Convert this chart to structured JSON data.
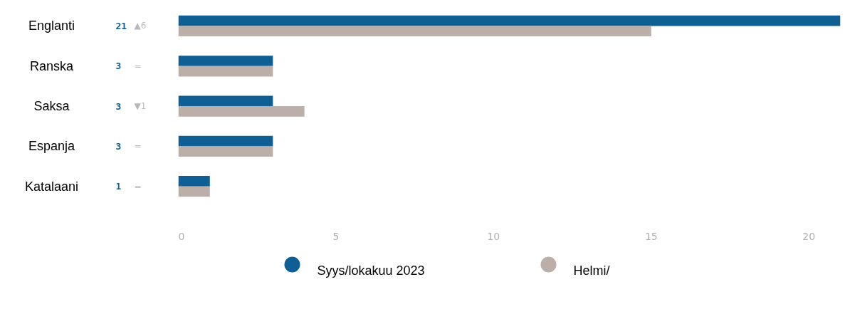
{
  "chart_data": {
    "type": "bar",
    "orientation": "horizontal",
    "categories": [
      "Englanti",
      "Ranska",
      "Saksa",
      "Espanja",
      "Katalaani"
    ],
    "series": [
      {
        "name": "Syys/lokakuu 2023",
        "color": "#0f5f94",
        "values": [
          21,
          3,
          3,
          3,
          1
        ]
      },
      {
        "name": "Helmi/",
        "color": "#bcaea8",
        "values": [
          15,
          3,
          4,
          3,
          1
        ]
      }
    ],
    "annotations": [
      "21",
      "▲6",
      "3",
      "=",
      "3",
      "▼1",
      "3",
      "=",
      "1",
      "="
    ],
    "xlim": [
      0,
      21
    ],
    "xticks": [
      0,
      5,
      10,
      15,
      20
    ],
    "grid": false,
    "legend": "bottom"
  }
}
